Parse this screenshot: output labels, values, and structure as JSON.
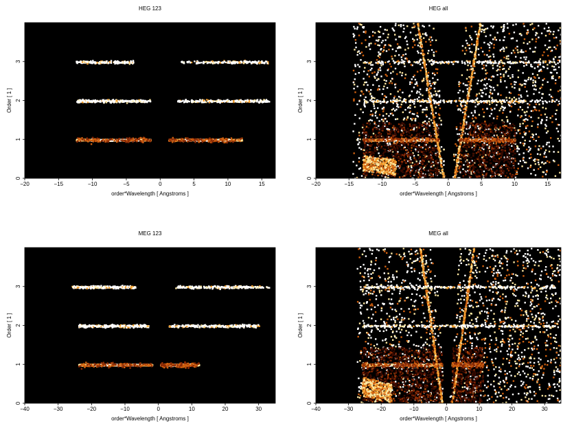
{
  "figure": {
    "background": "#ffffff",
    "plot_background": "#000000",
    "colormap": [
      "#3a0a00",
      "#8a2a05",
      "#d0600f",
      "#f4a030",
      "#fde7a0",
      "#ffffff"
    ]
  },
  "chart_data": [
    {
      "type": "heatmap",
      "title": "HEG 123",
      "xlabel": "order*Wavelength [ Angstroms ]",
      "ylabel": "Order [ 1 ]",
      "xlim": [
        -20,
        17
      ],
      "ylim": [
        0,
        4
      ],
      "xticks": [
        -20,
        -15,
        -10,
        -5,
        0,
        5,
        10,
        15
      ],
      "yticks": [
        0,
        1,
        2,
        3
      ],
      "bands": [
        {
          "order": 1,
          "x_range": [
            -12.5,
            -1.5
          ],
          "density": "high",
          "gap": [
            -1.5,
            1.2
          ]
        },
        {
          "order": 1,
          "x_range": [
            1.2,
            12
          ],
          "density": "high"
        },
        {
          "order": 2,
          "x_range": [
            -12.5,
            -1.5
          ],
          "density": "medium"
        },
        {
          "order": 2,
          "x_range": [
            2.5,
            16
          ],
          "density": "medium"
        },
        {
          "order": 3,
          "x_range": [
            -12.5,
            -4
          ],
          "density": "low"
        },
        {
          "order": 3,
          "x_range": [
            3,
            16
          ],
          "density": "low"
        }
      ],
      "background_scatter": "none"
    },
    {
      "type": "heatmap",
      "title": "HEG all",
      "xlabel": "order*Wavelength [ Angstroms ]",
      "ylabel": "Order [ 1 ]",
      "xlim": [
        -20,
        17
      ],
      "ylim": [
        0,
        4
      ],
      "xticks": [
        -20,
        -15,
        -10,
        -5,
        0,
        5,
        10,
        15
      ],
      "yticks": [
        0,
        1,
        2,
        3
      ],
      "bands": [
        {
          "order": 1,
          "x_range": [
            -13,
            -1.5
          ],
          "density": "high"
        },
        {
          "order": 1,
          "x_range": [
            1.5,
            10
          ],
          "density": "high"
        },
        {
          "order": 2,
          "x_range": [
            -13,
            16
          ],
          "density": "medium"
        },
        {
          "order": 3,
          "x_range": [
            -13,
            16
          ],
          "density": "low"
        }
      ],
      "background_scatter": "dense",
      "zero_order_wedge": {
        "left_edge": -0.8,
        "right_edge": 0.8,
        "spread_per_order": 3.5
      },
      "low_order_blob": {
        "x_range": [
          -13,
          -8
        ],
        "y_range": [
          0.2,
          0.6
        ]
      }
    },
    {
      "type": "heatmap",
      "title": "MEG 123",
      "xlabel": "order*Wavelength [ Angstroms ]",
      "ylabel": "Order [ 1 ]",
      "xlim": [
        -40,
        35
      ],
      "ylim": [
        0,
        4
      ],
      "xticks": [
        -40,
        -30,
        -20,
        -10,
        0,
        10,
        20,
        30
      ],
      "yticks": [
        0,
        1,
        2,
        3
      ],
      "bands": [
        {
          "order": 1,
          "x_range": [
            -24,
            -2
          ],
          "density": "high"
        },
        {
          "order": 1,
          "x_range": [
            0.5,
            12
          ],
          "density": "high"
        },
        {
          "order": 2,
          "x_range": [
            -24,
            -3
          ],
          "density": "medium"
        },
        {
          "order": 2,
          "x_range": [
            3,
            30
          ],
          "density": "medium"
        },
        {
          "order": 3,
          "x_range": [
            -26,
            -7
          ],
          "density": "medium"
        },
        {
          "order": 3,
          "x_range": [
            5,
            33
          ],
          "density": "medium"
        }
      ],
      "background_scatter": "none"
    },
    {
      "type": "heatmap",
      "title": "MEG all",
      "xlabel": "order*Wavelength [ Angstroms ]",
      "ylabel": "Order [ 1 ]",
      "xlim": [
        -40,
        35
      ],
      "ylim": [
        0,
        4
      ],
      "xticks": [
        -40,
        -30,
        -20,
        -10,
        0,
        10,
        20,
        30
      ],
      "yticks": [
        0,
        1,
        2,
        3
      ],
      "bands": [
        {
          "order": 1,
          "x_range": [
            -26,
            -1.5
          ],
          "density": "high"
        },
        {
          "order": 1,
          "x_range": [
            1.5,
            11
          ],
          "density": "high"
        },
        {
          "order": 2,
          "x_range": [
            -26,
            33
          ],
          "density": "medium"
        },
        {
          "order": 3,
          "x_range": [
            -26,
            33
          ],
          "density": "medium"
        }
      ],
      "background_scatter": "dense",
      "zero_order_wedge": {
        "left_edge": -1.5,
        "right_edge": 1.5,
        "spread_per_order": 6
      },
      "low_order_blob": {
        "x_range": [
          -26,
          -17
        ],
        "y_range": [
          0.2,
          0.7
        ]
      }
    }
  ]
}
